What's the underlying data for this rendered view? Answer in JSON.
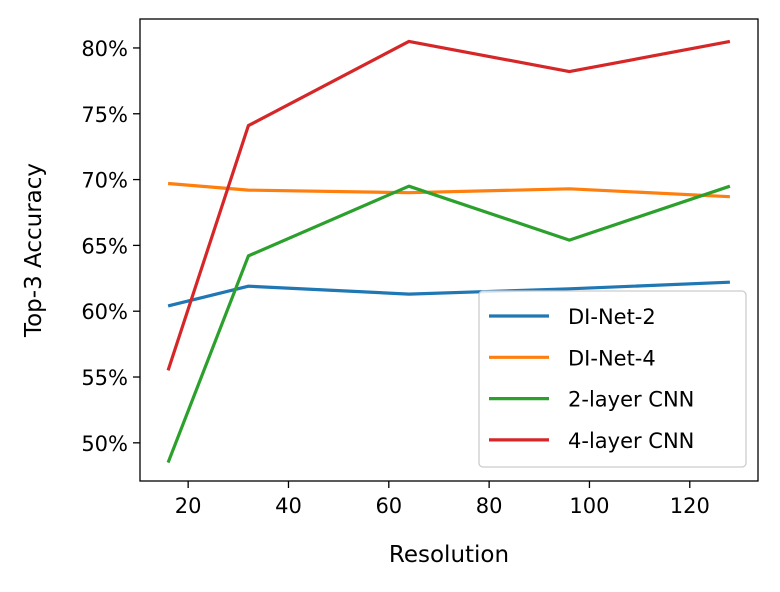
{
  "chart_data": {
    "type": "line",
    "title": "",
    "xlabel": "Resolution",
    "ylabel": "Top-3 Accuracy",
    "x": [
      16,
      32,
      64,
      96,
      128
    ],
    "xlim": [
      10.4,
      133.6
    ],
    "ylim": [
      0.471,
      0.822
    ],
    "xticks": [
      20,
      40,
      60,
      80,
      100,
      120
    ],
    "xtick_labels": [
      "20",
      "40",
      "60",
      "80",
      "100",
      "120"
    ],
    "yticks": [
      0.5,
      0.55,
      0.6,
      0.65,
      0.7,
      0.75,
      0.8
    ],
    "ytick_labels": [
      "50%",
      "55%",
      "60%",
      "65%",
      "70%",
      "75%",
      "80%"
    ],
    "grid": false,
    "legend_position": "lower-right",
    "series": [
      {
        "name": "DI-Net-2",
        "color": "#1f77b4",
        "values": [
          0.604,
          0.619,
          0.613,
          0.617,
          0.622
        ]
      },
      {
        "name": "DI-Net-4",
        "color": "#ff7f0e",
        "values": [
          0.697,
          0.692,
          0.69,
          0.693,
          0.687
        ]
      },
      {
        "name": "2-layer CNN",
        "color": "#2ca02c",
        "values": [
          0.485,
          0.642,
          0.695,
          0.654,
          0.695
        ]
      },
      {
        "name": "4-layer CNN",
        "color": "#d62728",
        "values": [
          0.555,
          0.741,
          0.805,
          0.782,
          0.805
        ]
      }
    ]
  }
}
